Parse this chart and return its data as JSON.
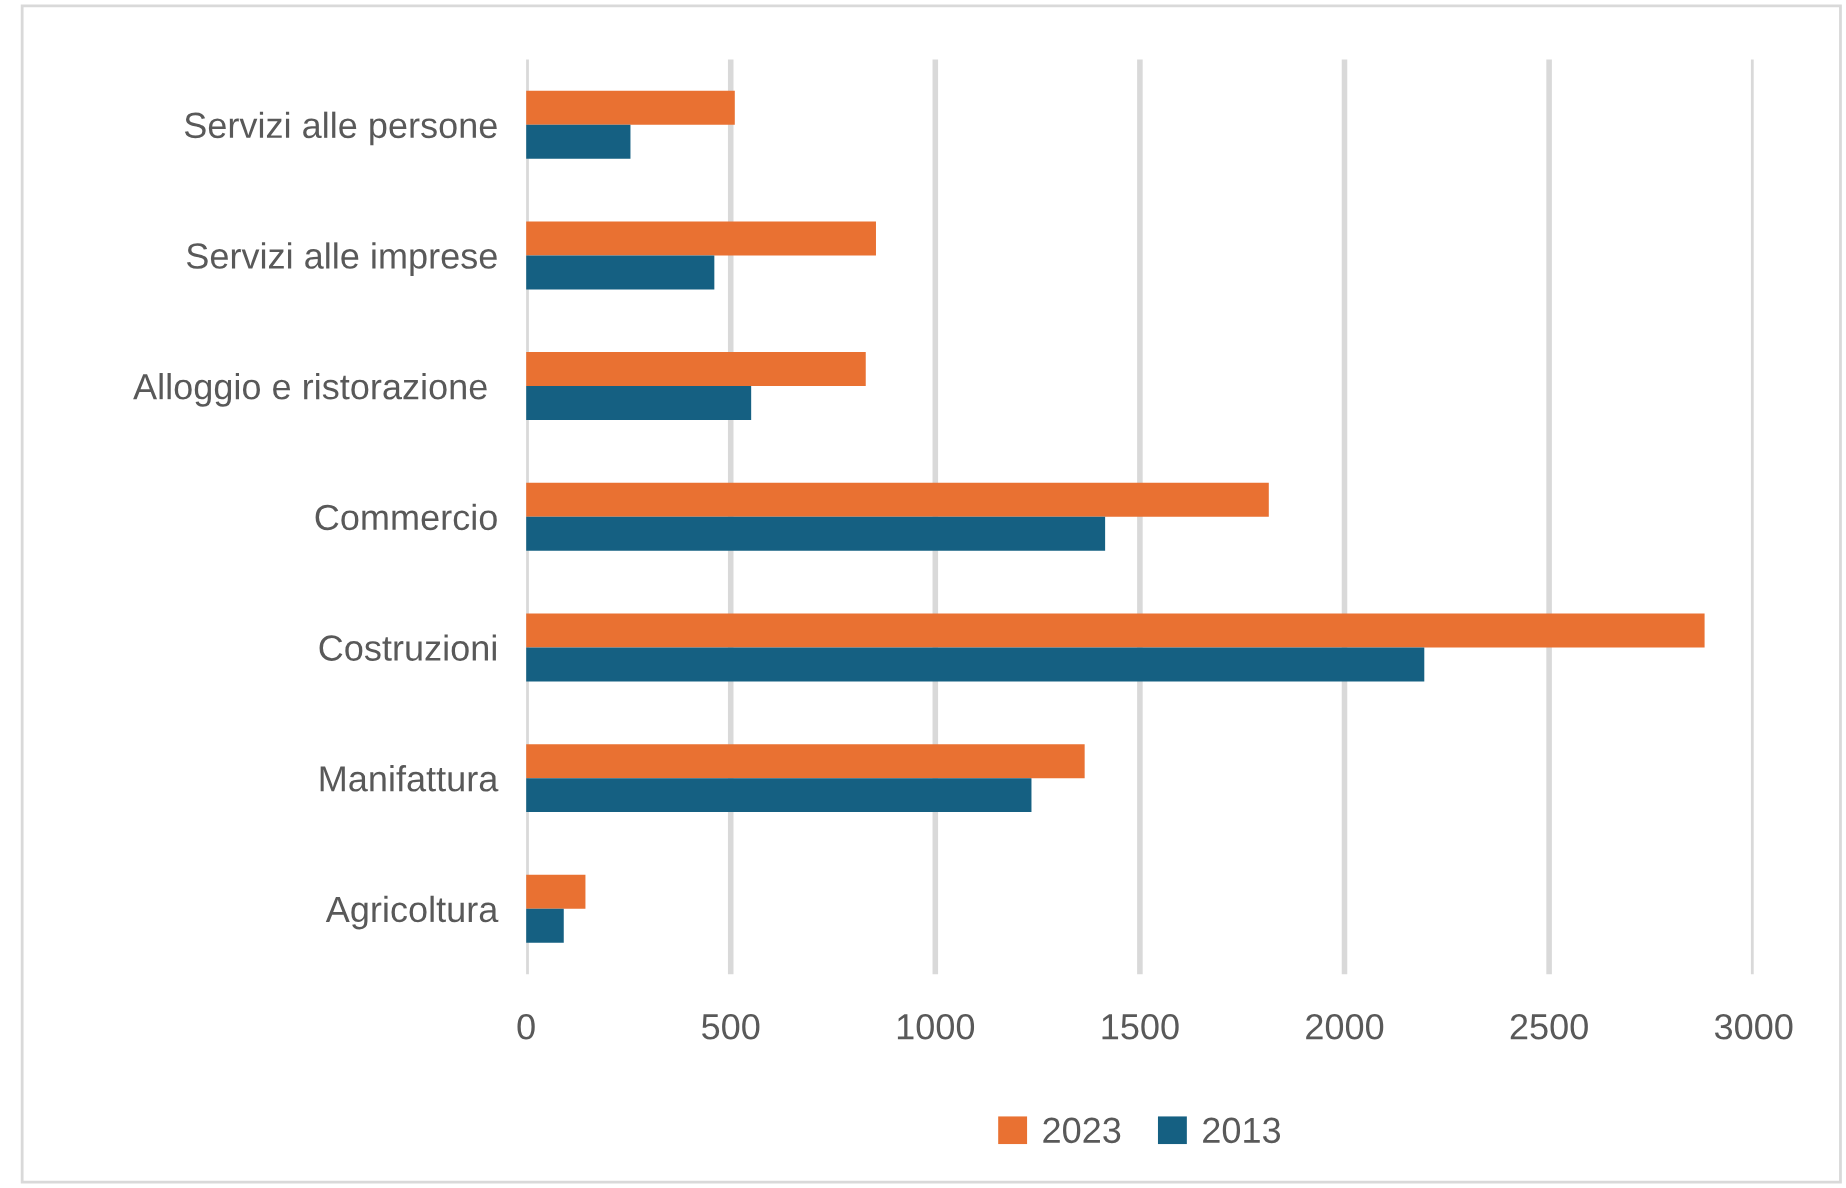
{
  "chart_data": {
    "type": "bar",
    "orientation": "horizontal",
    "categories": [
      "Servizi alle persone",
      "Servizi alle imprese",
      "Alloggio e ristorazione ",
      "Commercio",
      "Costruzioni",
      "Manifattura",
      "Agricoltura"
    ],
    "series": [
      {
        "name": "2023",
        "color": "#e97132",
        "values": [
          510,
          855,
          830,
          1815,
          2880,
          1365,
          145
        ]
      },
      {
        "name": "2013",
        "color": "#156082",
        "values": [
          255,
          460,
          550,
          1415,
          2195,
          1235,
          92
        ]
      }
    ],
    "xlim": [
      0,
      3000
    ],
    "xticks": [
      0,
      500,
      1000,
      1500,
      2000,
      2500,
      3000
    ],
    "grid": "x",
    "legend": "bottom"
  }
}
